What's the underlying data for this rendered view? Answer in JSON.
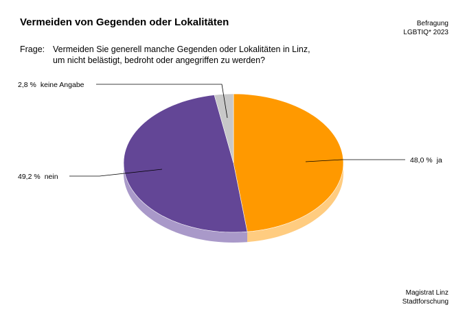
{
  "title": "Vermeiden von Gegenden oder Lokalitäten",
  "source": {
    "line1": "Befragung",
    "line2": "LGBTIQ* 2023"
  },
  "question": {
    "label": "Frage:",
    "line1": "Vermeiden Sie generell manche Gegenden oder Lokalitäten in Linz,",
    "line2": "um nicht belästigt, bedroht oder angegriffen zu werden?"
  },
  "footer": {
    "line1": "Magistrat Linz",
    "line2": "Stadtforschung"
  },
  "chart_data": {
    "type": "pie",
    "title": "Vermeiden von Gegenden oder Lokalitäten",
    "slices": [
      {
        "label": "ja",
        "value": 48.0,
        "display": "48,0 %",
        "color": "#ff9900",
        "side_color": "#ffcc80"
      },
      {
        "label": "nein",
        "value": 49.2,
        "display": "49,2 %",
        "color": "#634696",
        "side_color": "#a999c9"
      },
      {
        "label": "keine Angabe",
        "value": 2.8,
        "display": "2,8 %",
        "color": "#c8c8c8",
        "side_color": "#e3e3e3"
      }
    ]
  }
}
